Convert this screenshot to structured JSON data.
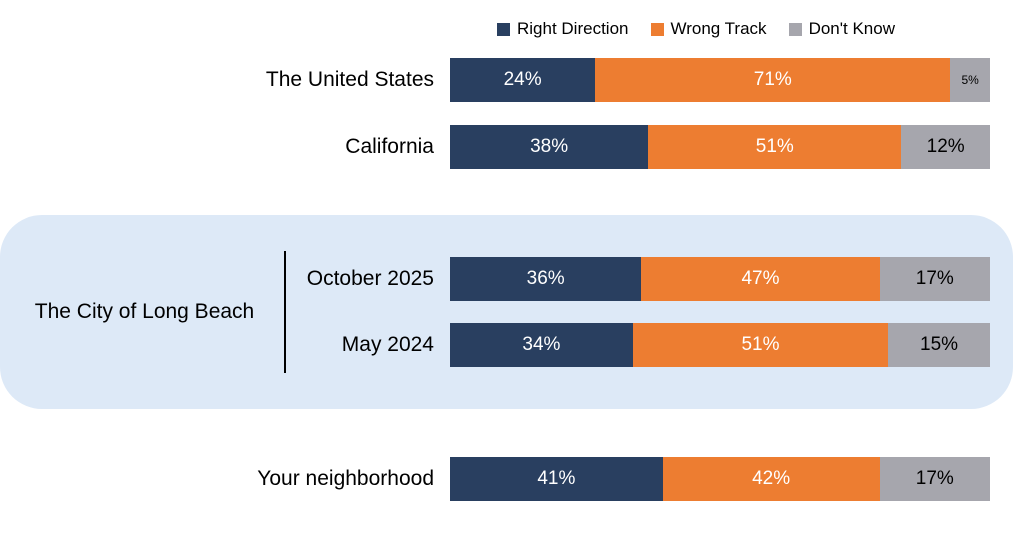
{
  "chart_data": {
    "type": "bar",
    "orientation": "horizontal",
    "stacked": true,
    "unit": "%",
    "xlim": [
      0,
      100
    ],
    "legend_position": "top",
    "series": [
      "Right Direction",
      "Wrong Track",
      "Don't Know"
    ],
    "group_label": "The City of Long Beach",
    "rows": [
      {
        "label": "The United States",
        "group": "",
        "values": [
          24,
          71,
          5
        ]
      },
      {
        "label": "California",
        "group": "",
        "values": [
          38,
          51,
          12
        ]
      },
      {
        "label": "October 2025",
        "group": "The City of Long Beach",
        "values": [
          36,
          47,
          17
        ]
      },
      {
        "label": "May 2024",
        "group": "The City of Long Beach",
        "values": [
          34,
          51,
          15
        ]
      },
      {
        "label": "Your neighborhood",
        "group": "",
        "values": [
          41,
          42,
          17
        ]
      }
    ]
  },
  "legend": [
    {
      "label": "Right Direction",
      "color": "#293f60"
    },
    {
      "label": "Wrong Track",
      "color": "#ED7D31"
    },
    {
      "label": "Don't Know",
      "color": "#a6a6ad"
    }
  ],
  "colors": {
    "right_direction": "#293f60",
    "wrong_track": "#ED7D31",
    "dont_know": "#a6a6ad",
    "group_highlight": "#dde9f7",
    "text": "#000000"
  }
}
